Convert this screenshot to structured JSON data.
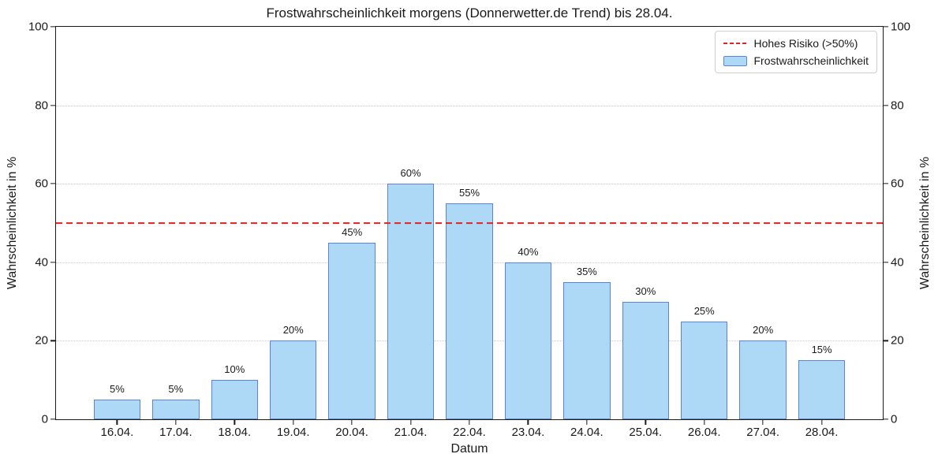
{
  "chart_data": {
    "type": "bar",
    "title": "Frostwahrscheinlichkeit morgens (Donnerwetter.de Trend) bis 28.04.",
    "xlabel": "Datum",
    "ylabel_left": "Wahrscheinlichkeit in %",
    "ylabel_right": "Wahrscheinlichkeit in %",
    "categories": [
      "16.04.",
      "17.04.",
      "18.04.",
      "19.04.",
      "20.04.",
      "21.04.",
      "22.04.",
      "23.04.",
      "24.04.",
      "25.04.",
      "26.04.",
      "27.04.",
      "28.04."
    ],
    "values": [
      5,
      5,
      10,
      20,
      45,
      60,
      55,
      40,
      35,
      30,
      25,
      20,
      15
    ],
    "bar_labels": [
      "5%",
      "5%",
      "10%",
      "20%",
      "45%",
      "60%",
      "55%",
      "40%",
      "35%",
      "30%",
      "25%",
      "20%",
      "15%"
    ],
    "ylim": [
      0,
      100
    ],
    "yticks": [
      0,
      20,
      40,
      60,
      80,
      100
    ],
    "grid_yticks": [
      20,
      40,
      60,
      80
    ],
    "grid_style": "dotted",
    "xlim": [
      -1.04,
      13.04
    ],
    "bar_width": 0.8,
    "threshold": {
      "value": 50,
      "label": "Hohes Risiko (>50%)",
      "style": "dashed"
    },
    "legend": {
      "position": "upper right",
      "entries": [
        {
          "label": "Hohes Risiko (>50%)",
          "type": "dashed-line"
        },
        {
          "label": "Frostwahrscheinlichkeit",
          "type": "patch"
        }
      ]
    },
    "colors": {
      "bar_fill": "#add9f7",
      "bar_edge": "#5b84d8",
      "risk_line": "#e32222",
      "grid": "#cbcbcb",
      "spine": "#1a1a1a",
      "text": "#1a1a1a"
    }
  }
}
